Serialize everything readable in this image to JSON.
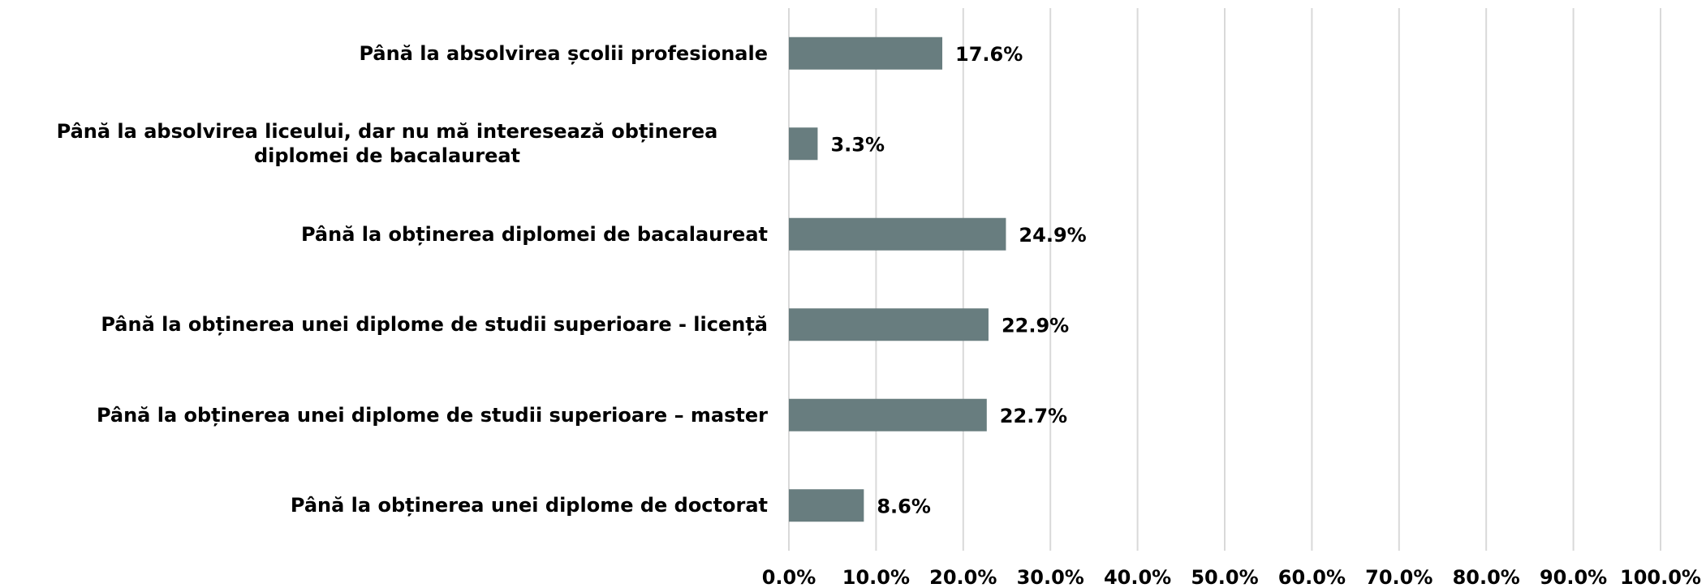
{
  "chart_data": {
    "type": "hbar",
    "categories": [
      "Până la absolvirea școlii profesionale",
      "Până la absolvirea liceului, dar nu mă interesează obținerea diplomei de bacalaureat",
      "Până la obținerea diplomei de bacalaureat",
      "Până la obținerea unei diplome de studii superioare - licență",
      "Până la obținerea unei diplome de studii superioare – master",
      "Până la obținerea unei diplome de doctorat"
    ],
    "values": [
      17.6,
      3.3,
      24.9,
      22.9,
      22.7,
      8.6
    ],
    "value_labels": [
      "17.6%",
      "3.3%",
      "24.9%",
      "22.9%",
      "22.7%",
      "8.6%"
    ],
    "color": "#687d7f",
    "xlim": [
      0,
      100
    ],
    "xticks": [
      {
        "value": 0,
        "label": "0.0%"
      },
      {
        "value": 10,
        "label": "10.0%"
      },
      {
        "value": 20,
        "label": "20.0%"
      },
      {
        "value": 30,
        "label": "30.0%"
      },
      {
        "value": 40,
        "label": "40.0%"
      },
      {
        "value": 50,
        "label": "50.0%"
      },
      {
        "value": 60,
        "label": "60.0%"
      },
      {
        "value": 70,
        "label": "70.0%"
      },
      {
        "value": 80,
        "label": "80.0%"
      },
      {
        "value": 90,
        "label": "90.0%"
      },
      {
        "value": 100,
        "label": "100.0%"
      }
    ],
    "grid": true
  }
}
